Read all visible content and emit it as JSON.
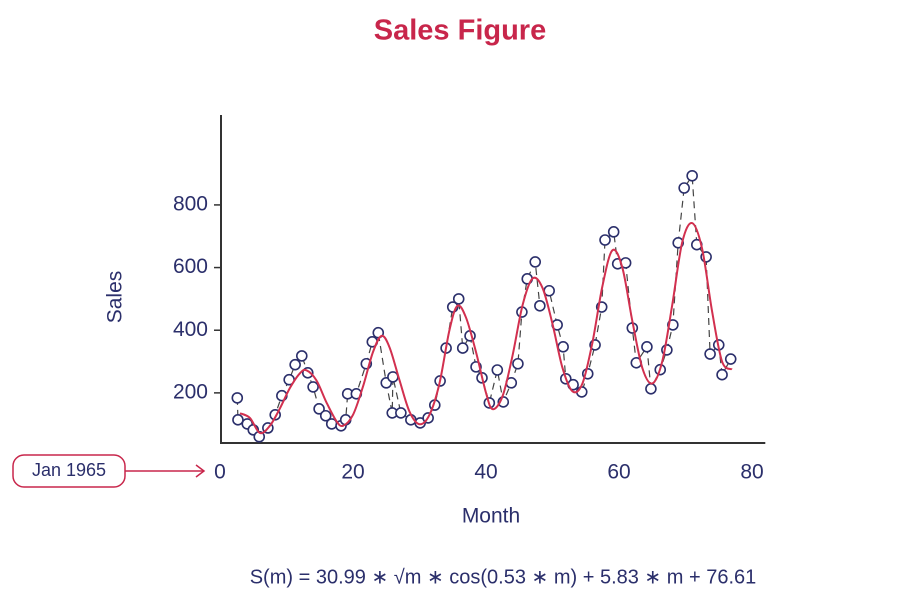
{
  "chart_data": {
    "type": "scatter",
    "title": "Sales Figure",
    "x_label": "Month",
    "y_label": "Sales",
    "formula": "S(m) = 30.99 ∗ √m ∗ cos(0.53 ∗ m) + 5.83 ∗ m + 76.61",
    "annotation": {
      "text": "Jan 1965",
      "x": 0
    },
    "xlim": [
      0,
      82
    ],
    "ylim": [
      40,
      1087
    ],
    "xticks": [
      0,
      20,
      40,
      60,
      80
    ],
    "yticks": [
      200,
      400,
      600,
      800
    ],
    "series": [
      {
        "type": "scatter",
        "color": "#2b2f6b",
        "line_color": "#444444",
        "line_style": "dashed",
        "x": [
          2.6,
          2.7,
          4.1,
          5,
          5.9,
          7.2,
          8.3,
          9.3,
          10.4,
          11.3,
          12.3,
          13.2,
          14,
          14.9,
          15.9,
          16.8,
          18.2,
          18.9,
          19.2,
          20.5,
          22,
          22.9,
          23.8,
          25,
          25.9,
          26,
          27.2,
          28.7,
          30.1,
          31.3,
          32.3,
          33.1,
          34,
          35,
          35.9,
          36.5,
          37.6,
          38.5,
          39.4,
          40.5,
          41.7,
          42.6,
          43.8,
          44.8,
          45.4,
          46.2,
          47.4,
          48.1,
          49.5,
          50.7,
          51.6,
          52,
          53.1,
          54.4,
          55.3,
          56.4,
          57.4,
          57.9,
          59.2,
          59.8,
          61,
          62,
          62.6,
          64.2,
          64.8,
          66.2,
          67.2,
          68.1,
          68.9,
          69.8,
          71,
          71.7,
          73.1,
          73.7,
          75,
          75.5,
          76.8
        ],
        "values": [
          184,
          114,
          101,
          82,
          60,
          88,
          130,
          191,
          242,
          290,
          318,
          264,
          219,
          149,
          127,
          101,
          95,
          114,
          197,
          197,
          293,
          363,
          392,
          232,
          136,
          251,
          136,
          114,
          104,
          120,
          161,
          238,
          343,
          474,
          500,
          343,
          382,
          283,
          248,
          168,
          273,
          171,
          232,
          293,
          458,
          564,
          618,
          478,
          526,
          417,
          347,
          245,
          226,
          203,
          261,
          353,
          474,
          688,
          714,
          612,
          615,
          407,
          296,
          347,
          213,
          274,
          337,
          417,
          679,
          854,
          893,
          673,
          634,
          324,
          353,
          258,
          308
        ]
      },
      {
        "type": "line",
        "color": "#d2304f",
        "x": [
          3,
          4.5,
          6,
          7.5,
          9,
          10.5,
          12,
          13,
          14.5,
          16,
          17.5,
          18.5,
          20,
          21.5,
          23,
          24.3,
          25.5,
          27,
          28.5,
          30,
          31.5,
          33,
          34.5,
          35.7,
          37,
          38.5,
          40,
          41,
          42.5,
          44,
          45.5,
          47,
          48.5,
          50,
          51.5,
          53,
          54.5,
          56,
          57.5,
          59,
          60.5,
          62,
          63.5,
          65,
          66.5,
          68,
          69.5,
          71,
          72.5,
          74,
          75.5,
          77
        ],
        "values": [
          135,
          120,
          72,
          95,
          150,
          215,
          262,
          272,
          240,
          170,
          110,
          95,
          130,
          220,
          330,
          382,
          345,
          240,
          140,
          100,
          130,
          230,
          400,
          478,
          440,
          330,
          200,
          148,
          190,
          320,
          480,
          565,
          535,
          420,
          280,
          205,
          230,
          360,
          540,
          655,
          600,
          430,
          280,
          230,
          300,
          480,
          680,
          742,
          660,
          460,
          300,
          275
        ]
      }
    ]
  }
}
